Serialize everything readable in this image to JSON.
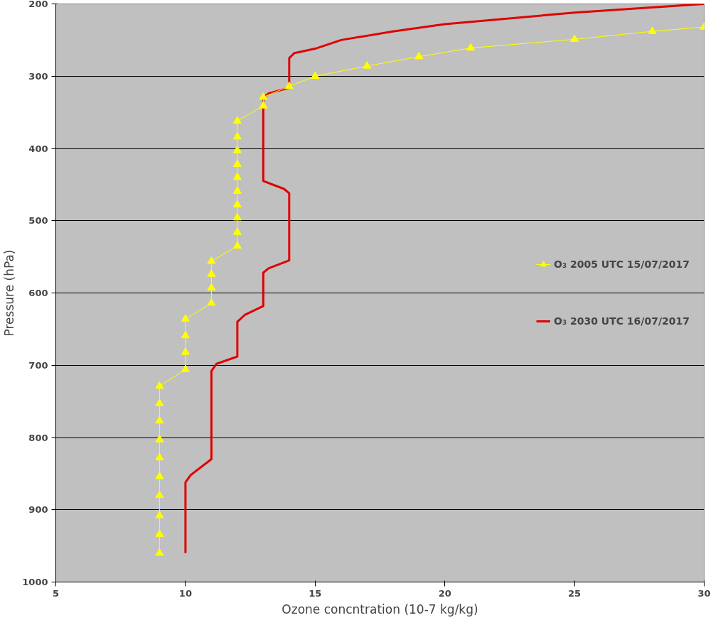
{
  "chart_data": {
    "type": "line",
    "xlabel": "Ozone concntration (10-7 kg/kg)",
    "ylabel": "Pressure (hPa)",
    "xlim": [
      5,
      30
    ],
    "xticks": [
      5,
      10,
      15,
      20,
      25,
      30
    ],
    "ylim": [
      1000,
      200
    ],
    "yticks": [
      200,
      300,
      400,
      500,
      600,
      700,
      800,
      900,
      1000
    ],
    "grid": "y",
    "legend": "right",
    "series": [
      {
        "name": "O₃ 2005 UTC 15/07/2017",
        "color": "#ffff00",
        "marker": "triangle",
        "x": [
          9,
          9,
          9,
          9,
          9,
          9,
          9,
          9,
          9,
          9,
          10,
          10,
          10,
          10,
          11,
          11,
          11,
          11,
          12,
          12,
          12,
          12,
          12,
          12,
          12,
          12,
          12,
          12,
          13,
          13,
          14,
          15,
          17,
          19,
          21,
          25,
          28,
          30
        ],
        "values": [
          960,
          934,
          908,
          880,
          854,
          828,
          803,
          777,
          753,
          729,
          706,
          682,
          659,
          636,
          614,
          593,
          574,
          556,
          535,
          516,
          496,
          478,
          459,
          440,
          422,
          403,
          384,
          362,
          341,
          329,
          314,
          300,
          286,
          273,
          261,
          249,
          238,
          232
        ]
      },
      {
        "name": "O₃ 2030 UTC 16/07/2017",
        "color": "#e00000",
        "marker": "none",
        "x": [
          10,
          10,
          10.2,
          11,
          11,
          11,
          11.2,
          12,
          12,
          12,
          12.3,
          13,
          13,
          13,
          13.2,
          14,
          14,
          13.8,
          13,
          13,
          13,
          13.2,
          14,
          14,
          14.2,
          15,
          16,
          18,
          20,
          25,
          30
        ],
        "values": [
          960,
          862,
          852,
          830,
          820,
          708,
          698,
          688,
          682,
          640,
          630,
          618,
          610,
          572,
          566,
          555,
          462,
          456,
          445,
          440,
          330,
          324,
          316,
          275,
          268,
          262,
          250,
          238,
          228,
          212,
          200
        ]
      }
    ]
  }
}
